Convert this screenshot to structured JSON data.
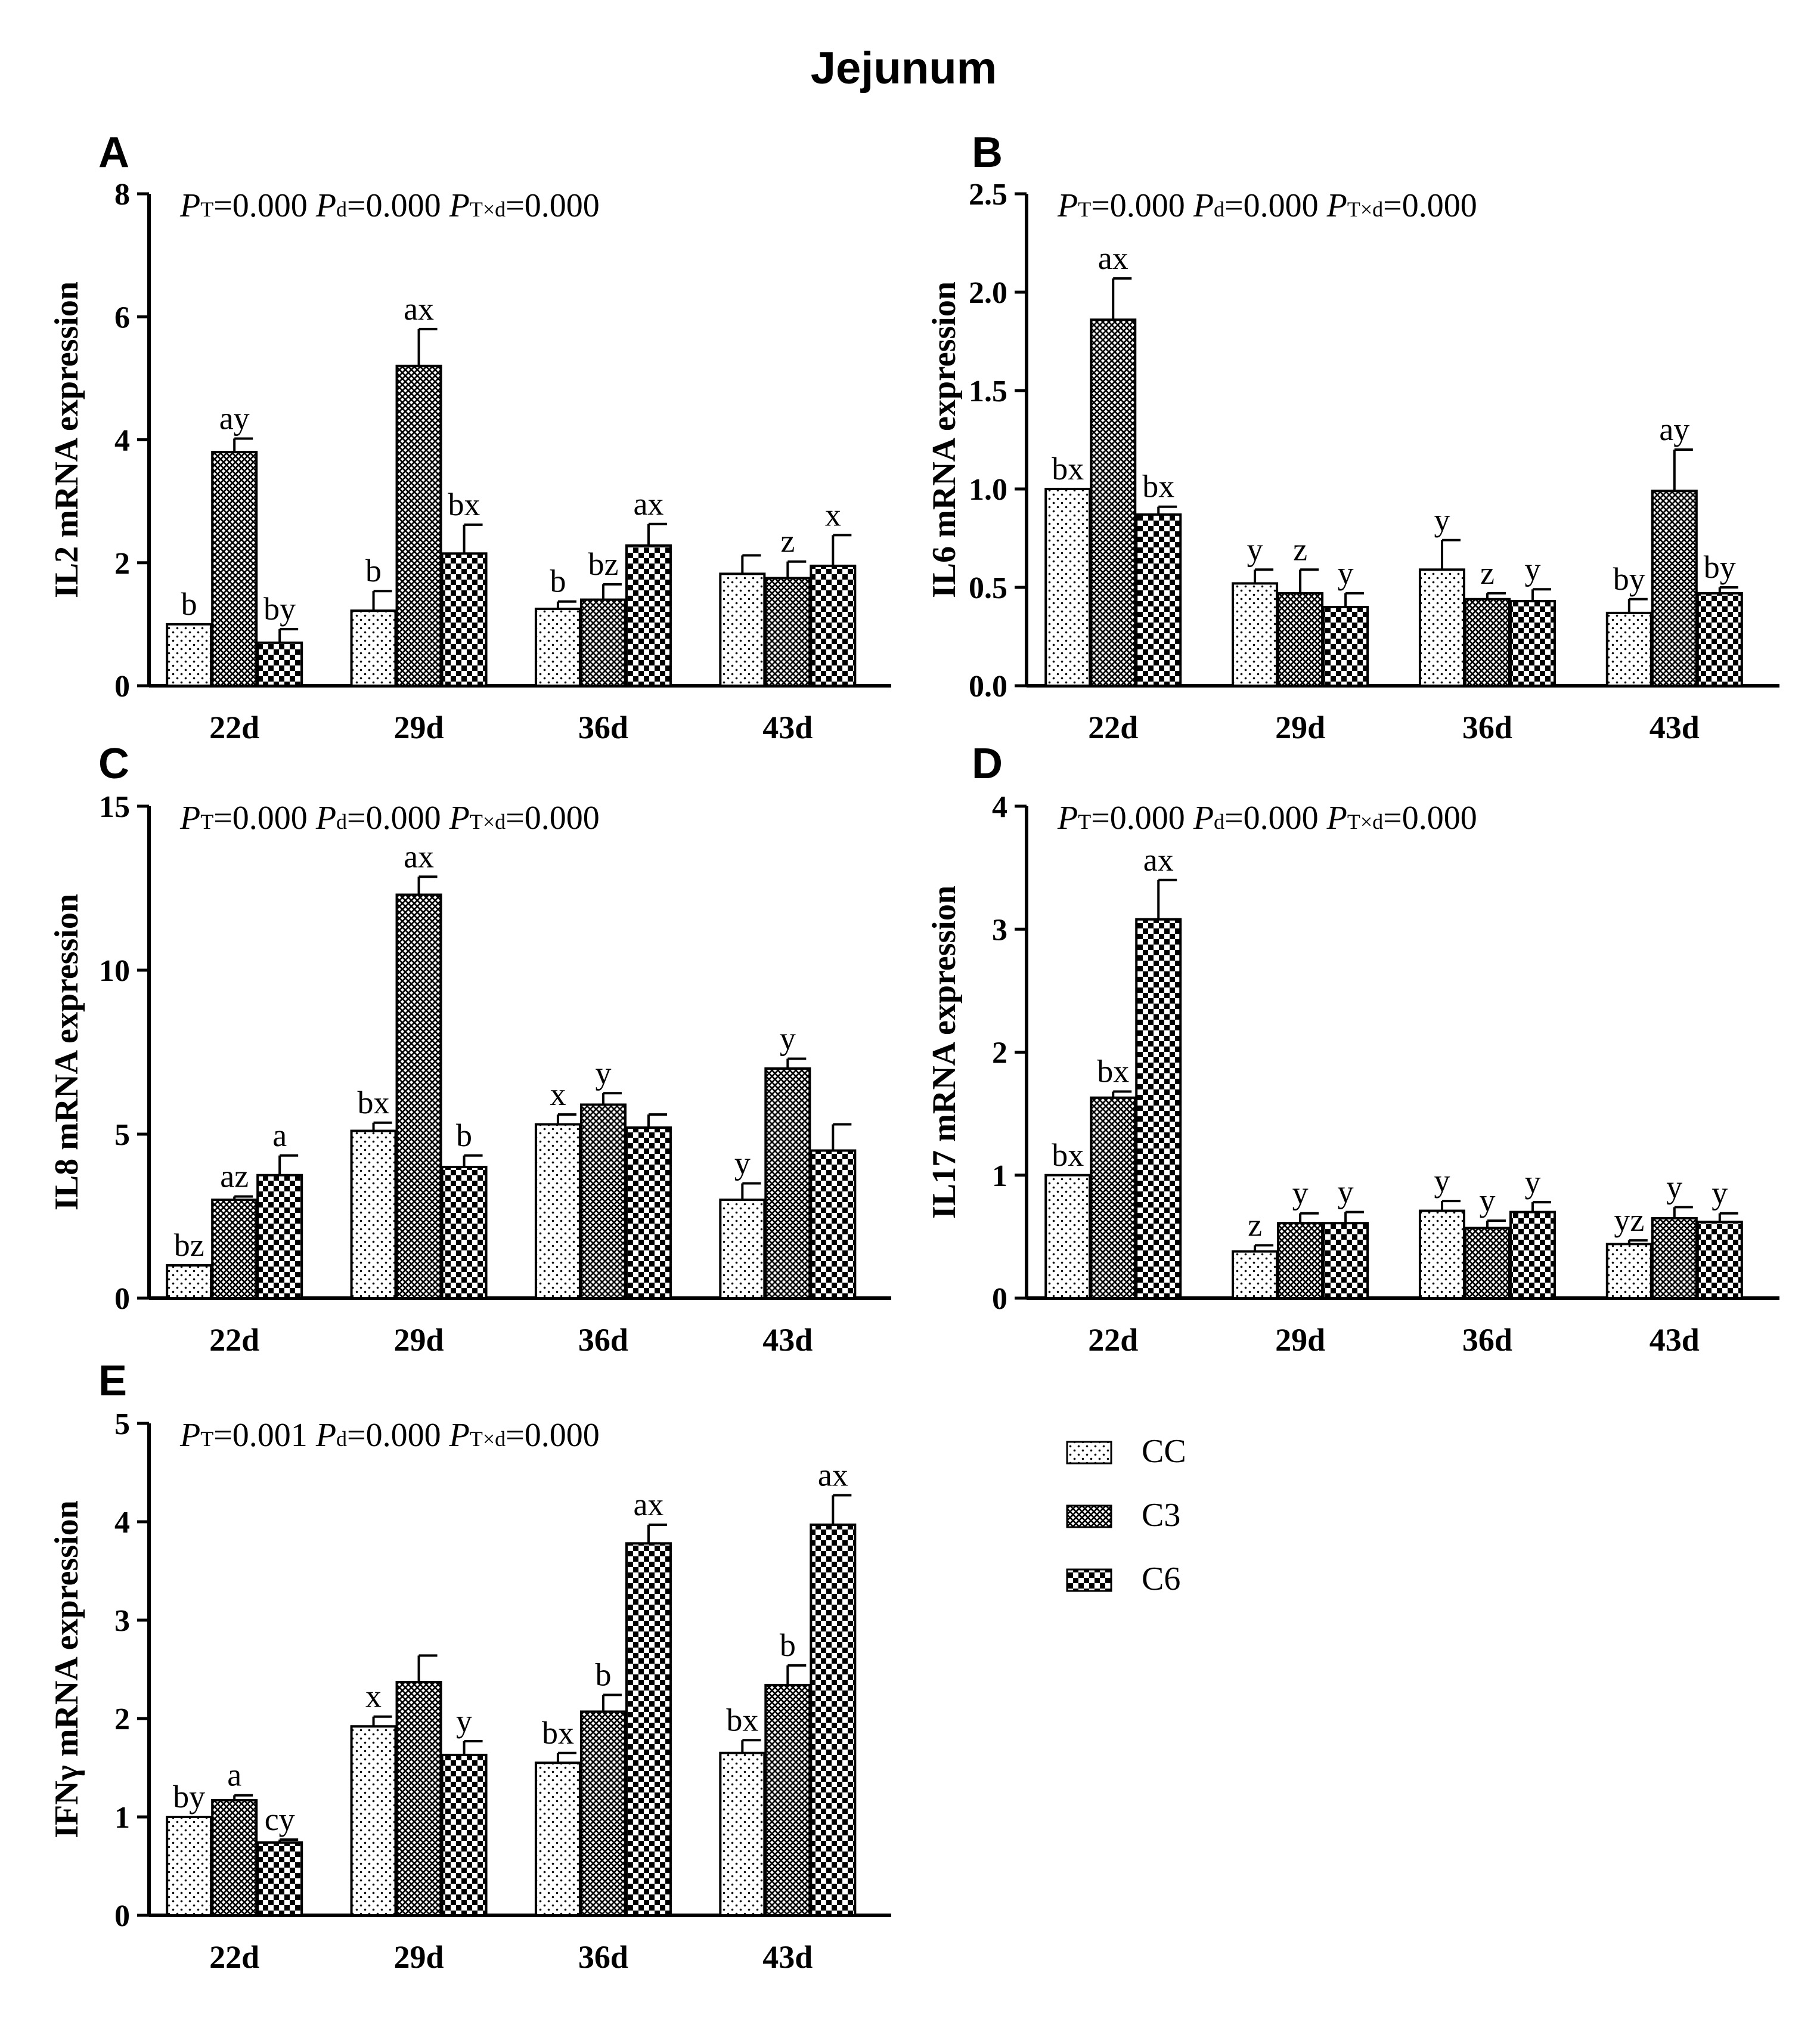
{
  "figure_title": "Jejunum",
  "legend": [
    {
      "name": "CC",
      "pattern": "pat-dots"
    },
    {
      "name": "C3",
      "pattern": "pat-cross"
    },
    {
      "name": "C6",
      "pattern": "pat-check"
    }
  ],
  "chart_data": [
    {
      "id": "A",
      "type": "bar",
      "ylabel": "IL2 mRNA expression",
      "ylim": [
        0,
        8
      ],
      "yticks": [
        "0",
        "2",
        "4",
        "6",
        "8"
      ],
      "categories": [
        "22d",
        "29d",
        "36d",
        "43d"
      ],
      "pvals": {
        "T": "=0.000",
        "d": "=0.000",
        "Txd": "=0.000"
      },
      "series": [
        {
          "name": "CC",
          "values": [
            1.0,
            1.22,
            1.25,
            1.82
          ],
          "errors": [
            0.0,
            0.32,
            0.12,
            0.3
          ],
          "labels": [
            "b",
            "b",
            "b",
            ""
          ]
        },
        {
          "name": "C3",
          "values": [
            3.8,
            5.2,
            1.4,
            1.75
          ],
          "errors": [
            0.22,
            0.6,
            0.25,
            0.27
          ],
          "labels": [
            "ay",
            "ax",
            "bz",
            "z"
          ]
        },
        {
          "name": "C6",
          "values": [
            0.7,
            2.15,
            2.28,
            1.95
          ],
          "errors": [
            0.22,
            0.47,
            0.35,
            0.5
          ],
          "labels": [
            "by",
            "bx",
            "ax",
            "x"
          ]
        }
      ]
    },
    {
      "id": "B",
      "type": "bar",
      "ylabel": "IL6 mRNA expression",
      "ylim": [
        0,
        2.5
      ],
      "yticks": [
        "0.0",
        "0.5",
        "1.0",
        "1.5",
        "2.0",
        "2.5"
      ],
      "categories": [
        "22d",
        "29d",
        "36d",
        "43d"
      ],
      "pvals": {
        "T": "=0.000",
        "d": "=0.000",
        "Txd": "=0.000"
      },
      "series": [
        {
          "name": "CC",
          "values": [
            1.0,
            0.52,
            0.59,
            0.37
          ],
          "errors": [
            0.0,
            0.07,
            0.15,
            0.07
          ],
          "labels": [
            "bx",
            "y",
            "y",
            "by"
          ]
        },
        {
          "name": "C3",
          "values": [
            1.86,
            0.47,
            0.44,
            0.99
          ],
          "errors": [
            0.21,
            0.12,
            0.03,
            0.21
          ],
          "labels": [
            "ax",
            "z",
            "z",
            "ay"
          ]
        },
        {
          "name": "C6",
          "values": [
            0.87,
            0.4,
            0.43,
            0.47
          ],
          "errors": [
            0.04,
            0.07,
            0.06,
            0.03
          ],
          "labels": [
            "bx",
            "y",
            "y",
            "by"
          ]
        }
      ]
    },
    {
      "id": "C",
      "type": "bar",
      "ylabel": "IL8 mRNA expression",
      "ylim": [
        0,
        15
      ],
      "yticks": [
        "0",
        "5",
        "10",
        "15"
      ],
      "categories": [
        "22d",
        "29d",
        "36d",
        "43d"
      ],
      "pvals": {
        "T": "=0.000",
        "d": "=0.000",
        "Txd": "=0.000"
      },
      "series": [
        {
          "name": "CC",
          "values": [
            1.0,
            5.1,
            5.3,
            3.0
          ],
          "errors": [
            0.0,
            0.25,
            0.3,
            0.5
          ],
          "labels": [
            "bz",
            "bx",
            "x",
            "y"
          ]
        },
        {
          "name": "C3",
          "values": [
            3.0,
            12.3,
            5.9,
            7.0
          ],
          "errors": [
            0.1,
            0.55,
            0.35,
            0.3
          ],
          "labels": [
            "az",
            "ax",
            "y",
            "y"
          ]
        },
        {
          "name": "C6",
          "values": [
            3.75,
            4.0,
            5.2,
            4.5
          ],
          "errors": [
            0.6,
            0.35,
            0.4,
            0.8
          ],
          "labels": [
            "a",
            "b",
            "",
            ""
          ]
        }
      ]
    },
    {
      "id": "D",
      "type": "bar",
      "ylabel": "IL17 mRNA expression",
      "ylim": [
        0,
        4
      ],
      "yticks": [
        "0",
        "1",
        "2",
        "3",
        "4"
      ],
      "categories": [
        "22d",
        "29d",
        "36d",
        "43d"
      ],
      "pvals": {
        "T": "=0.000",
        "d": "=0.000",
        "Txd": "=0.000"
      },
      "series": [
        {
          "name": "CC",
          "values": [
            1.0,
            0.38,
            0.71,
            0.44
          ],
          "errors": [
            0.0,
            0.05,
            0.08,
            0.03
          ],
          "labels": [
            "bx",
            "z",
            "y",
            "yz"
          ]
        },
        {
          "name": "C3",
          "values": [
            1.63,
            0.61,
            0.57,
            0.65
          ],
          "errors": [
            0.05,
            0.08,
            0.06,
            0.09
          ],
          "labels": [
            "bx",
            "y",
            "y",
            "y"
          ]
        },
        {
          "name": "C6",
          "values": [
            3.08,
            0.61,
            0.7,
            0.62
          ],
          "errors": [
            0.32,
            0.09,
            0.08,
            0.07
          ],
          "labels": [
            "ax",
            "y",
            "y",
            "y"
          ]
        }
      ]
    },
    {
      "id": "E",
      "type": "bar",
      "ylabel": "IFNγ mRNA expression",
      "ylim": [
        0,
        5
      ],
      "yticks": [
        "0",
        "1",
        "2",
        "3",
        "4",
        "5"
      ],
      "categories": [
        "22d",
        "29d",
        "36d",
        "43d"
      ],
      "pvals": {
        "T": "=0.001",
        "d": "=0.000",
        "Txd": "=0.000"
      },
      "series": [
        {
          "name": "CC",
          "values": [
            1.0,
            1.92,
            1.55,
            1.65
          ],
          "errors": [
            0.0,
            0.1,
            0.1,
            0.13
          ],
          "labels": [
            "by",
            "x",
            "bx",
            "bx"
          ]
        },
        {
          "name": "C3",
          "values": [
            1.17,
            2.37,
            2.07,
            2.34
          ],
          "errors": [
            0.05,
            0.27,
            0.17,
            0.2
          ],
          "labels": [
            "a",
            "",
            "b",
            "b"
          ]
        },
        {
          "name": "C6",
          "values": [
            0.74,
            1.63,
            3.78,
            3.97
          ],
          "errors": [
            0.03,
            0.14,
            0.19,
            0.3
          ],
          "labels": [
            "cy",
            "y",
            "ax",
            "ax"
          ]
        }
      ]
    }
  ]
}
